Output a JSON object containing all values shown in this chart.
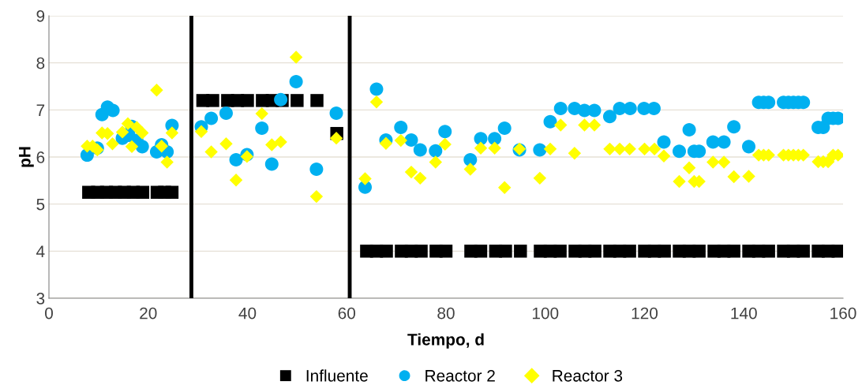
{
  "chart_data": {
    "type": "scatter",
    "xlabel": "Tiempo, d",
    "ylabel": "pH",
    "xlim": [
      0,
      160
    ],
    "xticks": [
      0,
      20,
      40,
      60,
      80,
      100,
      120,
      140,
      160
    ],
    "ylim": [
      3,
      9
    ],
    "yticks": [
      3,
      4,
      5,
      6,
      7,
      8,
      9
    ],
    "grid": "y",
    "legend": "bottom",
    "ref_lines": [
      {
        "axis": "x",
        "value": 28.7,
        "color": "#000000",
        "line_style": "solid"
      },
      {
        "axis": "x",
        "value": 60.6,
        "color": "#000000",
        "line_style": "solid"
      }
    ],
    "series": [
      {
        "name": "Influente",
        "color": "#000000",
        "marker": "square",
        "x": [
          8,
          9.8,
          11.6,
          13.4,
          15.2,
          17,
          18.9,
          21.8,
          23.3,
          24.8,
          31,
          33,
          36,
          38,
          40,
          43,
          45,
          47,
          50,
          54,
          58,
          64,
          66,
          68,
          71,
          73,
          75,
          78,
          80,
          85,
          87,
          90,
          92,
          95,
          99,
          101,
          103,
          106,
          108,
          110,
          113,
          115,
          117,
          120,
          122,
          124,
          127,
          129,
          131,
          134,
          136,
          138,
          141,
          143,
          145,
          148,
          150,
          152,
          155,
          157,
          159
        ],
        "values": [
          5.25,
          5.25,
          5.25,
          5.25,
          5.25,
          5.25,
          5.25,
          5.25,
          5.25,
          5.25,
          7.2,
          7.2,
          7.2,
          7.2,
          7.2,
          7.2,
          7.2,
          7.2,
          7.2,
          7.2,
          6.5,
          4,
          4,
          4,
          4,
          4,
          4,
          4,
          4,
          4,
          4,
          4,
          4,
          4,
          4,
          4,
          4,
          4,
          4,
          4,
          4,
          4,
          4,
          4,
          4,
          4,
          4,
          4,
          4,
          4,
          4,
          4,
          4,
          4,
          4,
          4,
          4,
          4,
          4,
          4,
          4
        ]
      },
      {
        "name": "Reactor 2",
        "color": "#00b0f0",
        "marker": "circle",
        "x": [
          7.7,
          9.75,
          10.7,
          11.8,
          12.9,
          14.8,
          16.7,
          16.1,
          17.7,
          18.8,
          21.7,
          22.7,
          23.8,
          24.8,
          30.7,
          32.7,
          35.7,
          37.7,
          39.9,
          42.9,
          44.9,
          46.7,
          49.8,
          53.9,
          57.9,
          63.7,
          66,
          67.9,
          70.9,
          73,
          74.8,
          77.9,
          79.8,
          84.9,
          87,
          89.8,
          91.8,
          94.8,
          98.9,
          101,
          103.1,
          105.9,
          107.9,
          109.9,
          113,
          115,
          117.1,
          119.9,
          121.9,
          123.9,
          127,
          129,
          130,
          131,
          133.8,
          136,
          138,
          141,
          143,
          144,
          145,
          148,
          149,
          150,
          151,
          152,
          155,
          156,
          157,
          158,
          159
        ],
        "values": [
          6.04,
          6.19,
          6.9,
          7.06,
          6.99,
          6.4,
          6.65,
          6.46,
          6.35,
          6.22,
          6.11,
          6.26,
          6.11,
          6.67,
          6.64,
          6.82,
          6.93,
          5.94,
          6.05,
          6.61,
          5.85,
          7.22,
          7.6,
          5.74,
          6.93,
          5.36,
          7.44,
          6.36,
          6.63,
          6.36,
          6.15,
          6.13,
          6.54,
          5.94,
          6.39,
          6.39,
          6.61,
          6.15,
          6.15,
          6.75,
          7.03,
          7.03,
          6.99,
          6.99,
          6.86,
          7.03,
          7.03,
          7.03,
          7.03,
          6.32,
          6.12,
          6.58,
          6.12,
          6.12,
          6.32,
          6.32,
          6.64,
          6.22,
          7.16,
          7.16,
          7.16,
          7.16,
          7.16,
          7.16,
          7.16,
          7.16,
          6.63,
          6.63,
          6.82,
          6.82,
          6.82
        ]
      },
      {
        "name": "Reactor 3",
        "color": "#ffff00",
        "marker": "diamond",
        "x": [
          7.7,
          8.8,
          9.75,
          10.7,
          11.8,
          12.8,
          14.8,
          15.9,
          16.7,
          17.7,
          18.8,
          21.7,
          22.7,
          23.8,
          24.8,
          30.7,
          32.7,
          35.7,
          37.7,
          39.9,
          42.9,
          44.9,
          46.7,
          49.8,
          53.9,
          57.9,
          63.7,
          66,
          67.9,
          70.9,
          73,
          74.8,
          77.9,
          79.8,
          84.9,
          87,
          89.8,
          91.8,
          94.8,
          98.9,
          101,
          103.1,
          105.9,
          107.9,
          109.9,
          113,
          115,
          117,
          120,
          122,
          123.9,
          127,
          129,
          130,
          131,
          133.8,
          136,
          138,
          141,
          143,
          144,
          145,
          148,
          149,
          150,
          151,
          152,
          155,
          156,
          157,
          158,
          159
        ],
        "values": [
          6.23,
          6.23,
          6.15,
          6.51,
          6.5,
          6.28,
          6.53,
          6.71,
          6.22,
          6.63,
          6.51,
          7.42,
          6.23,
          5.89,
          6.51,
          6.54,
          6.11,
          6.28,
          5.51,
          6.01,
          6.92,
          6.26,
          6.32,
          8.12,
          5.16,
          6.4,
          5.54,
          7.17,
          6.29,
          6.35,
          5.68,
          5.55,
          5.89,
          6.27,
          5.74,
          6.19,
          6.19,
          5.35,
          6.17,
          5.55,
          6.17,
          6.68,
          6.08,
          6.68,
          6.68,
          6.17,
          6.17,
          6.17,
          6.17,
          6.17,
          6.02,
          5.48,
          5.77,
          5.48,
          5.48,
          5.89,
          5.89,
          5.58,
          5.59,
          6.04,
          6.04,
          6.04,
          6.04,
          6.04,
          6.04,
          6.04,
          6.04,
          5.9,
          5.9,
          5.9,
          6.04,
          6.04
        ]
      }
    ]
  }
}
